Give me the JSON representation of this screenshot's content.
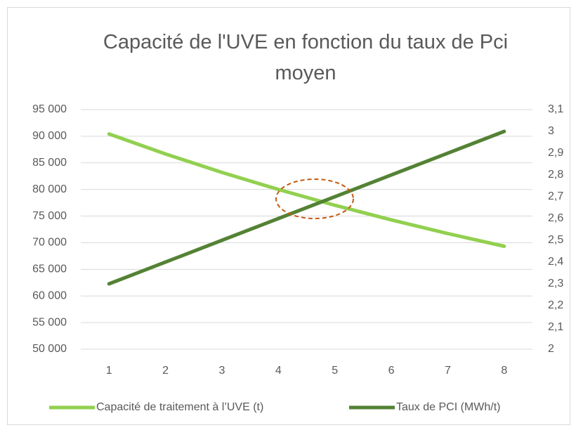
{
  "chart_data": {
    "type": "line",
    "title": "Capacité de l'UVE en fonction du taux de Pci moyen",
    "categories": [
      "1",
      "2",
      "3",
      "4",
      "5",
      "6",
      "7",
      "8"
    ],
    "series": [
      {
        "name": "Capacité de traitement à l’UVE (t)",
        "color": "#92d050",
        "values": [
          90435,
          86667,
          83200,
          80000,
          77037,
          74286,
          71724,
          69333
        ]
      },
      {
        "name": "Taux de PCI (MWh/t)",
        "color": "#548235",
        "axis": "y2",
        "values": [
          2.3,
          2.4,
          2.5,
          2.6,
          2.7,
          2.8,
          2.9,
          3.0
        ]
      }
    ],
    "ylim": [
      50000,
      95000
    ],
    "yticks": [
      {
        "value": 50000,
        "label": "50 000"
      },
      {
        "value": 55000,
        "label": "55 000"
      },
      {
        "value": 60000,
        "label": "60 000"
      },
      {
        "value": 65000,
        "label": "65 000"
      },
      {
        "value": 70000,
        "label": "70 000"
      },
      {
        "value": 75000,
        "label": "75 000"
      },
      {
        "value": 80000,
        "label": "80 000"
      },
      {
        "value": 85000,
        "label": "85 000"
      },
      {
        "value": 90000,
        "label": "90 000"
      },
      {
        "value": 95000,
        "label": "95 000"
      }
    ],
    "y2lim": [
      2,
      3.1
    ],
    "y2ticks": [
      2,
      {
        "value": 2.1,
        "label": "2,1"
      },
      {
        "value": 2.2,
        "label": "2,2"
      },
      {
        "value": 2.3,
        "label": "2,3"
      },
      {
        "value": 2.4,
        "label": "2,4"
      },
      {
        "value": 2.5,
        "label": "2,5"
      },
      {
        "value": 2.6,
        "label": "2,6"
      },
      {
        "value": 2.7,
        "label": "2,7"
      },
      {
        "value": 2.8,
        "label": "2,8"
      },
      {
        "value": 2.9,
        "label": "2,9"
      },
      3,
      {
        "value": 3.1,
        "label": "3,1"
      }
    ],
    "grid": true,
    "legend": "bottom"
  }
}
